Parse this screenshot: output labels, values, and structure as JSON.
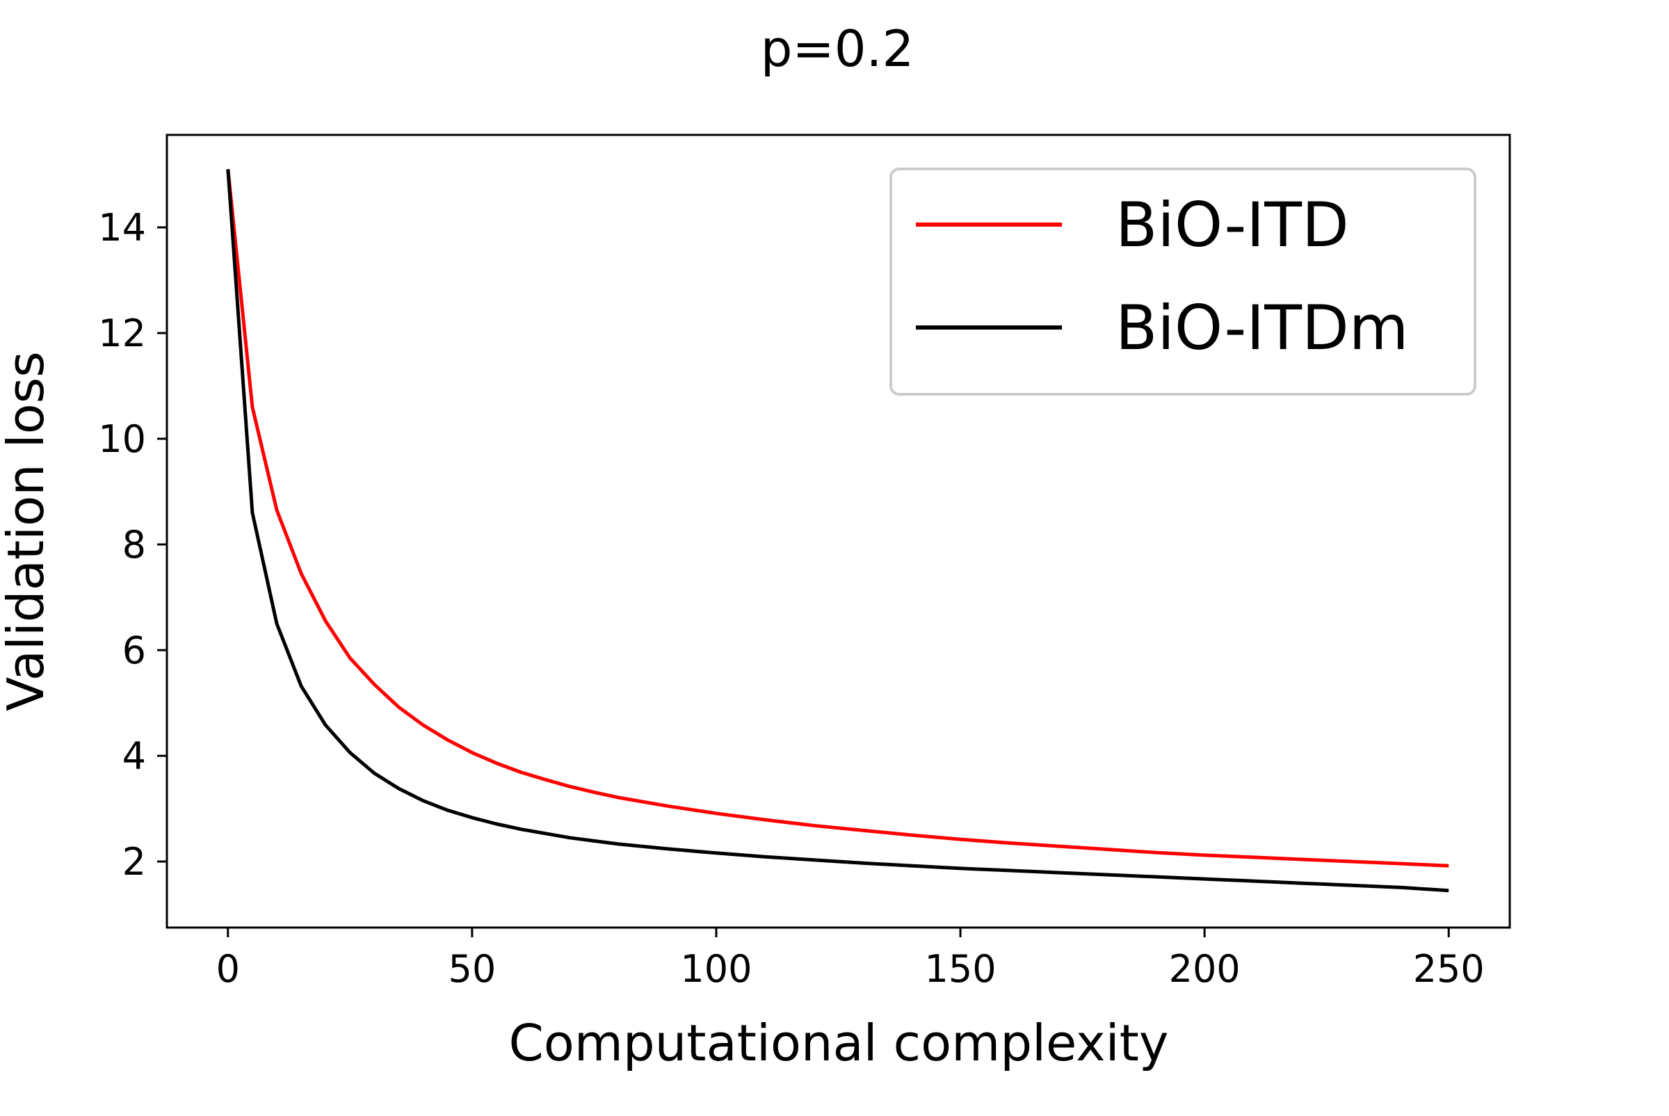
{
  "chart_data": {
    "type": "line",
    "title": "p=0.2",
    "xlabel": "Computational complexity",
    "ylabel": "Validation loss",
    "xlim": [
      -12.5,
      262.5
    ],
    "ylim": [
      0.75,
      15.75
    ],
    "x_ticks": [
      0,
      50,
      100,
      150,
      200,
      250
    ],
    "y_ticks": [
      2,
      4,
      6,
      8,
      10,
      12,
      14
    ],
    "grid": false,
    "legend_position": "upper right",
    "series": [
      {
        "name": "BiO-ITD",
        "color": "#ff0000",
        "x": [
          0,
          5,
          10,
          15,
          20,
          25,
          30,
          35,
          40,
          45,
          50,
          55,
          60,
          65,
          70,
          75,
          80,
          90,
          100,
          110,
          120,
          130,
          140,
          150,
          160,
          170,
          180,
          190,
          200,
          210,
          220,
          230,
          240,
          250
        ],
        "y": [
          15.1,
          10.6,
          8.65,
          7.45,
          6.55,
          5.85,
          5.35,
          4.92,
          4.58,
          4.3,
          4.06,
          3.86,
          3.69,
          3.55,
          3.42,
          3.31,
          3.21,
          3.05,
          2.91,
          2.79,
          2.68,
          2.59,
          2.5,
          2.42,
          2.35,
          2.29,
          2.23,
          2.17,
          2.12,
          2.08,
          2.04,
          2.0,
          1.96,
          1.92
        ]
      },
      {
        "name": "BiO-ITDm",
        "color": "#000000",
        "x": [
          0,
          5,
          10,
          15,
          20,
          25,
          30,
          35,
          40,
          45,
          50,
          55,
          60,
          65,
          70,
          75,
          80,
          90,
          100,
          110,
          120,
          130,
          140,
          150,
          160,
          170,
          180,
          190,
          200,
          210,
          220,
          230,
          240,
          250
        ],
        "y": [
          15.1,
          8.6,
          6.5,
          5.32,
          4.58,
          4.06,
          3.67,
          3.38,
          3.15,
          2.97,
          2.83,
          2.71,
          2.61,
          2.53,
          2.45,
          2.39,
          2.33,
          2.24,
          2.16,
          2.09,
          2.03,
          1.97,
          1.92,
          1.87,
          1.83,
          1.79,
          1.75,
          1.71,
          1.67,
          1.63,
          1.59,
          1.55,
          1.51,
          1.45
        ]
      }
    ]
  }
}
